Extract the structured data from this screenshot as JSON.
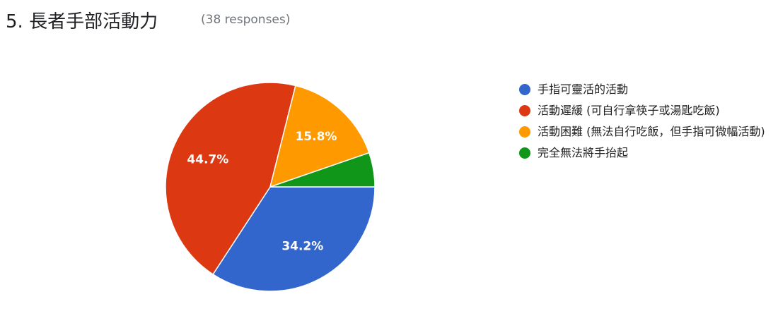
{
  "chart_data": {
    "type": "pie",
    "title": "5. 長者手部活動力",
    "subtitle": "(38 responses)",
    "categories": [
      "手指可靈活的活動",
      "活動遲緩 (可自行拿筷子或湯匙吃飯)",
      "活動困難 (無法自行吃飯，但手指可微幅活動)",
      "完全無法將手抬起"
    ],
    "values": [
      34.2,
      44.7,
      15.8,
      5.3
    ],
    "value_labels": [
      "34.2%",
      "44.7%",
      "15.8%",
      null
    ],
    "colors": [
      "#3366cc",
      "#dc3912",
      "#ff9900",
      "#109618"
    ],
    "legend": "right"
  }
}
